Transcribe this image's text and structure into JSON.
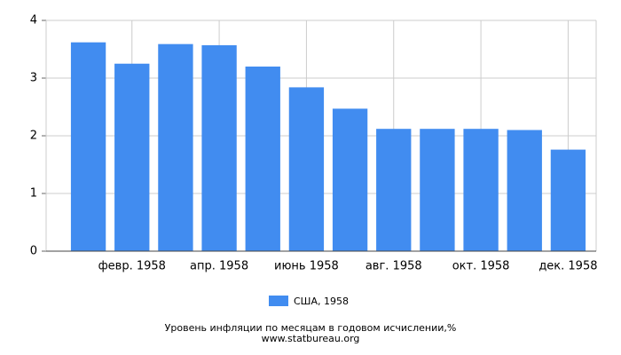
{
  "chart_data": {
    "type": "bar",
    "categories": [
      null,
      "февр. 1958",
      null,
      "апр. 1958",
      null,
      "июнь 1958",
      null,
      "авг. 1958",
      null,
      "окт. 1958",
      null,
      "дек. 1958"
    ],
    "series": [
      {
        "name": "США, 1958",
        "color": "#418cf0",
        "values": [
          3.62,
          3.25,
          3.59,
          3.57,
          3.2,
          2.84,
          2.47,
          2.12,
          2.12,
          2.12,
          2.1,
          1.76
        ]
      }
    ],
    "ylim": [
      0,
      4
    ],
    "yticks": [
      0,
      1,
      2,
      3,
      4
    ],
    "grid": true,
    "footer": [
      "Уровень инфляции по месяцам в годовом исчислении,%",
      "www.statbureau.org"
    ]
  }
}
